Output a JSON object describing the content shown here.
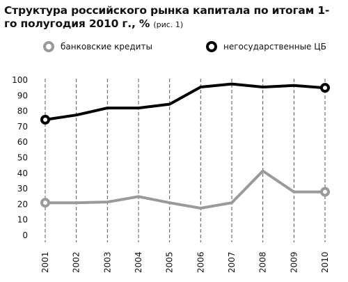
{
  "title": {
    "main": "Структура российского рынка капитала по итогам 1-го полугодия 2010 г., %",
    "note": "(рис. 1)"
  },
  "colors": {
    "bank_loans": "#9a9a9a",
    "nongov_securities": "#000000",
    "grid": "#555555"
  },
  "chart_data": {
    "type": "line",
    "title": "Структура российского рынка капитала по итогам 1-го полугодия 2010 г., %",
    "xlabel": "",
    "ylabel": "",
    "categories": [
      "2001",
      "2002",
      "2003",
      "2004",
      "2005",
      "2006",
      "2007",
      "2008",
      "2009",
      "2010"
    ],
    "y_ticks": [
      "0",
      "10",
      "20",
      "30",
      "40",
      "50",
      "60",
      "70",
      "80",
      "90",
      "100"
    ],
    "ylim": [
      0,
      100
    ],
    "grid": "vertical dashed",
    "legend_position": "top",
    "series": [
      {
        "name": "банковские кредиты",
        "color": "#9a9a9a",
        "values": [
          21,
          21,
          21.5,
          25,
          21,
          17.5,
          21,
          41.5,
          28,
          28
        ]
      },
      {
        "name": "негосударственные ЦБ",
        "color": "#000000",
        "values": [
          74.5,
          77.5,
          82,
          82,
          84.5,
          95.5,
          97.5,
          95.5,
          96.5,
          95
        ]
      }
    ]
  }
}
